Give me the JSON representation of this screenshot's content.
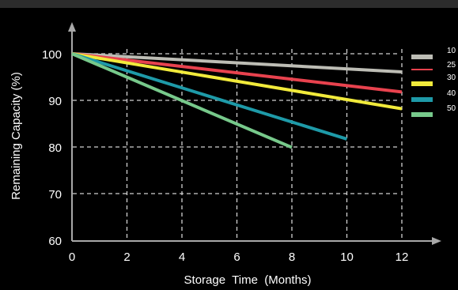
{
  "chart_data": {
    "type": "line",
    "title": "",
    "xlabel": "Storage  Time  (Months)",
    "ylabel": "Remaining Capacity (%)",
    "x_ticks": [
      "0",
      "2",
      "4",
      "6",
      "8",
      "10",
      "12"
    ],
    "y_ticks": [
      "100",
      "90",
      "80",
      "70",
      "60"
    ],
    "xlim": [
      0,
      12
    ],
    "ylim": [
      60,
      100
    ],
    "grid": true,
    "legend_position": "right",
    "series": [
      {
        "name": "10",
        "color": "#bdbdb5",
        "x": [
          0,
          12
        ],
        "y": [
          100,
          96.1
        ]
      },
      {
        "name": "25",
        "color": "#e8424e",
        "x": [
          0,
          12
        ],
        "y": [
          100,
          91.8
        ]
      },
      {
        "name": "30",
        "color": "#f1ea3b",
        "x": [
          0,
          12
        ],
        "y": [
          100,
          88.2
        ]
      },
      {
        "name": "40",
        "color": "#1e9aa8",
        "x": [
          0,
          10
        ],
        "y": [
          100,
          81.7
        ]
      },
      {
        "name": "50",
        "color": "#77c98b",
        "x": [
          0,
          8
        ],
        "y": [
          100,
          79.9
        ]
      }
    ]
  }
}
